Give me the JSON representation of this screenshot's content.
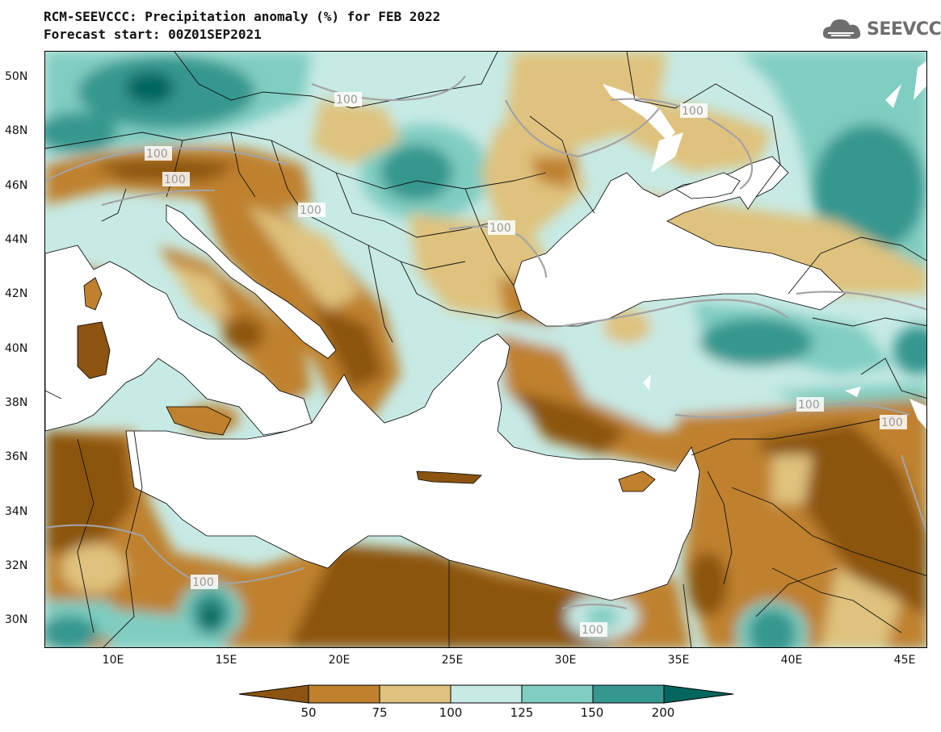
{
  "title_line1": "RCM-SEEVCCC: Precipitation anomaly (%) for FEB 2022",
  "title_line2": "Forecast start: 00Z01SEP2021",
  "logo_text": "SEEVCCC",
  "lat_labels": [
    "50N",
    "48N",
    "46N",
    "44N",
    "42N",
    "40N",
    "38N",
    "36N",
    "34N",
    "32N",
    "30N"
  ],
  "lon_labels": [
    "10E",
    "15E",
    "20E",
    "25E",
    "30E",
    "35E",
    "40E",
    "45E"
  ],
  "colorbar": {
    "labels": [
      "50",
      "75",
      "100",
      "125",
      "150",
      "200"
    ],
    "colors": [
      "#8c5410",
      "#bf812d",
      "#dfc27d",
      "#c7eae5",
      "#80cdc1",
      "#35978f",
      "#01665e"
    ]
  },
  "contour_labels": [
    "100",
    "100",
    "100",
    "100",
    "100",
    "100",
    "100",
    "100",
    "100",
    "100"
  ]
}
